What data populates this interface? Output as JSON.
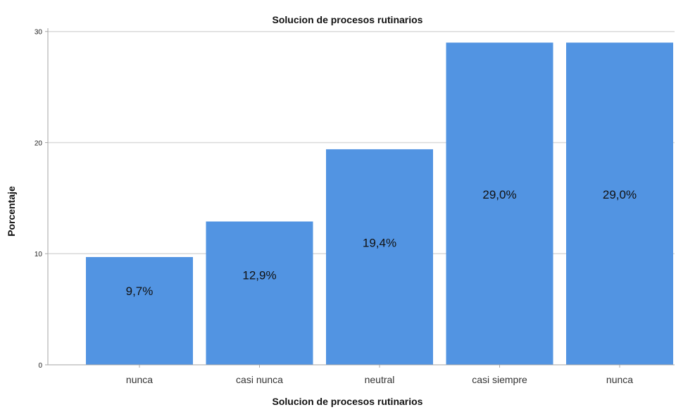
{
  "chart_data": {
    "type": "bar",
    "title": "Solucion de procesos rutinarios",
    "xlabel": "Solucion de procesos rutinarios",
    "ylabel": "Porcentaje",
    "categories": [
      "nunca",
      "casi nunca",
      "neutral",
      "casi siempre",
      "nunca"
    ],
    "values": [
      9.7,
      12.9,
      19.4,
      29.0,
      29.0
    ],
    "data_labels": [
      "9,7%",
      "12,9%",
      "19,4%",
      "29,0%",
      "29,0%"
    ],
    "yticks": [
      0,
      10,
      20,
      30
    ],
    "ylim": [
      0,
      30.3
    ],
    "grid": true,
    "legend": "none",
    "bar_color": "#5294e2",
    "grid_color": "#d9d9d9",
    "axis_color": "#a6a6a6"
  }
}
